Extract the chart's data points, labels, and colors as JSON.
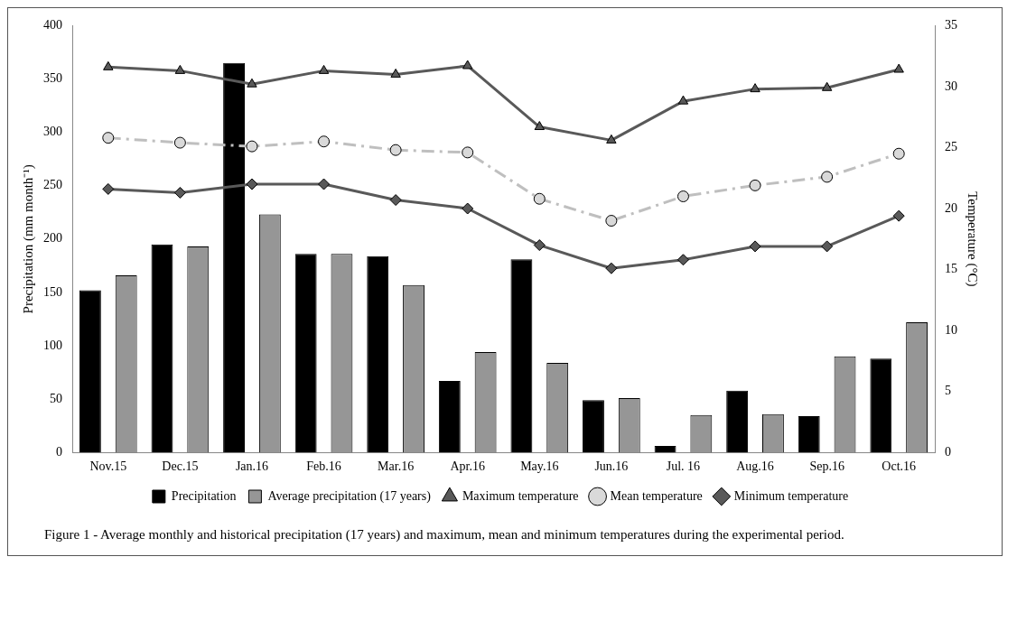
{
  "chart_data": {
    "type": "bar",
    "categories": [
      "Nov.15",
      "Dec.15",
      "Jan.16",
      "Feb.16",
      "Mar.16",
      "Apr.16",
      "May.16",
      "Jun.16",
      "Jul. 16",
      "Aug.16",
      "Sep.16",
      "Oct.16"
    ],
    "ylabel": "Precipitation (mm month⁻¹)",
    "y2label": "Temperature (°C)",
    "ylim": [
      0,
      400
    ],
    "yticks": [
      0,
      50,
      100,
      150,
      200,
      250,
      300,
      350,
      400
    ],
    "y2lim": [
      0,
      35
    ],
    "y2ticks": [
      0,
      5,
      10,
      15,
      20,
      25,
      30,
      35
    ],
    "grid": false,
    "legend": "bottom",
    "series": [
      {
        "name": "Precipitation",
        "color": "#000000",
        "values": [
          152,
          195,
          365,
          186,
          184,
          67,
          181,
          49,
          6,
          58,
          34,
          88
        ]
      },
      {
        "name": "Average precipitation (17 years)",
        "color": "#969696",
        "values": [
          166,
          193,
          223,
          186,
          157,
          94,
          84,
          51,
          35,
          36,
          90,
          122
        ]
      },
      {
        "name": "Maximum temperature",
        "type": "line",
        "axis": "y2",
        "color": "#595959",
        "marker": "triangle",
        "line_style": "solid",
        "values": [
          31.6,
          31.3,
          30.2,
          31.3,
          31.0,
          31.7,
          26.7,
          25.6,
          28.8,
          29.8,
          29.9,
          31.4
        ]
      },
      {
        "name": "Mean temperature",
        "type": "line",
        "axis": "y2",
        "color": "#bfbfbf",
        "marker": "circle",
        "line_style": "dashed",
        "values": [
          25.8,
          25.4,
          25.1,
          25.5,
          24.8,
          24.6,
          20.8,
          19.0,
          21.0,
          21.9,
          22.6,
          24.5
        ]
      },
      {
        "name": "Minimum temperature",
        "type": "line",
        "axis": "y2",
        "color": "#595959",
        "marker": "diamond",
        "line_style": "solid",
        "values": [
          21.6,
          21.3,
          22.0,
          22.0,
          20.7,
          20.0,
          17.0,
          15.1,
          15.8,
          16.9,
          16.9,
          19.4
        ]
      }
    ],
    "annotations": [
      "Figure 1 - Average monthly and historical precipitation (17 years) and maximum, mean and minimum temperatures during the experimental period."
    ]
  }
}
